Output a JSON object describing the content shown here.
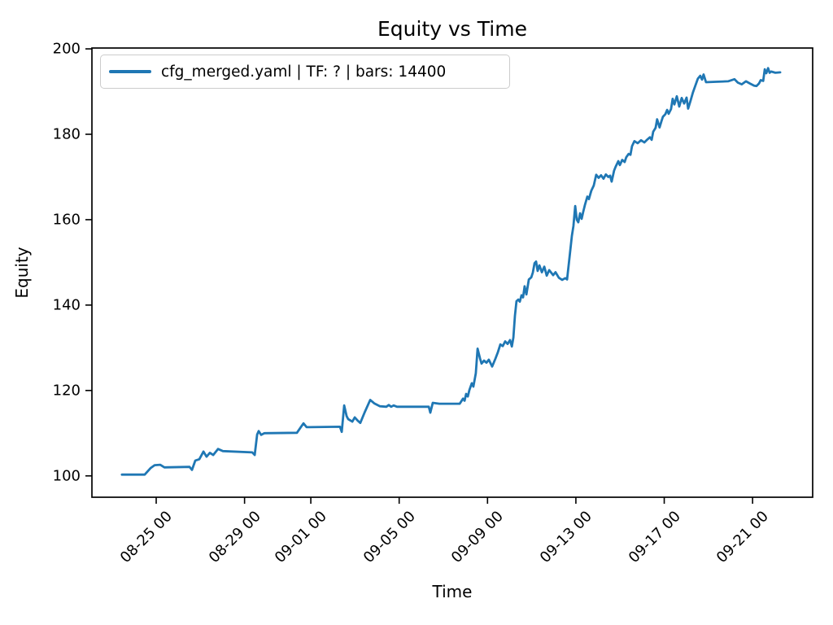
{
  "title": "Equity vs Time",
  "xlabel": "Time",
  "ylabel": "Equity",
  "legend": {
    "label": "cfg_merged.yaml | TF: ? | bars: 14400",
    "swatch_color": "#1f77b4"
  },
  "colors": {
    "line": "#1f77b4",
    "axes": "#000000",
    "legend_border": "#cccccc",
    "background": "#ffffff"
  },
  "chart_data": {
    "type": "line",
    "title": "Equity vs Time",
    "xlabel": "Time",
    "ylabel": "Equity",
    "grid": false,
    "legend_entries": [
      "cfg_merged.yaml | TF: ? | bars: 14400"
    ],
    "legend_position": "upper left",
    "x_unit": "days since 08-23 00:00",
    "xlim": [
      -0.91,
      31.72
    ],
    "ylim": [
      95.0,
      200.2
    ],
    "x_ticks": {
      "values": [
        2,
        6,
        9,
        13,
        17,
        21,
        25,
        29
      ],
      "labels": [
        "08-25 00",
        "08-29 00",
        "09-01 00",
        "09-05 00",
        "09-09 00",
        "09-13 00",
        "09-17 00",
        "09-21 00"
      ]
    },
    "y_ticks": {
      "values": [
        100,
        120,
        140,
        160,
        180,
        200
      ],
      "labels": [
        "100",
        "120",
        "140",
        "160",
        "180",
        "200"
      ]
    },
    "series": [
      {
        "name": "cfg_merged.yaml | TF: ? | bars: 14400",
        "color": "#1f77b4",
        "points": [
          [
            0.45,
            100.3
          ],
          [
            1.48,
            100.3
          ],
          [
            1.74,
            101.8
          ],
          [
            1.93,
            102.5
          ],
          [
            2.18,
            102.6
          ],
          [
            2.37,
            102.0
          ],
          [
            3.51,
            102.1
          ],
          [
            3.62,
            101.4
          ],
          [
            3.77,
            103.6
          ],
          [
            3.95,
            103.9
          ],
          [
            4.14,
            105.7
          ],
          [
            4.28,
            104.5
          ],
          [
            4.43,
            105.4
          ],
          [
            4.58,
            104.9
          ],
          [
            4.8,
            106.3
          ],
          [
            5.02,
            105.8
          ],
          [
            6.35,
            105.5
          ],
          [
            6.46,
            104.9
          ],
          [
            6.57,
            109.7
          ],
          [
            6.64,
            110.5
          ],
          [
            6.75,
            109.6
          ],
          [
            6.9,
            110.0
          ],
          [
            8.37,
            110.1
          ],
          [
            8.56,
            111.5
          ],
          [
            8.67,
            112.3
          ],
          [
            8.81,
            111.4
          ],
          [
            10.32,
            111.5
          ],
          [
            10.4,
            110.3
          ],
          [
            10.51,
            116.5
          ],
          [
            10.62,
            114.0
          ],
          [
            10.69,
            113.3
          ],
          [
            10.88,
            112.7
          ],
          [
            10.99,
            113.7
          ],
          [
            11.13,
            112.9
          ],
          [
            11.24,
            112.4
          ],
          [
            11.43,
            114.8
          ],
          [
            11.69,
            117.8
          ],
          [
            11.87,
            117.0
          ],
          [
            12.13,
            116.3
          ],
          [
            12.42,
            116.2
          ],
          [
            12.53,
            116.6
          ],
          [
            12.64,
            116.2
          ],
          [
            12.75,
            116.5
          ],
          [
            12.9,
            116.2
          ],
          [
            14.34,
            116.2
          ],
          [
            14.41,
            114.8
          ],
          [
            14.52,
            117.1
          ],
          [
            14.82,
            116.9
          ],
          [
            15.74,
            116.9
          ],
          [
            15.89,
            118.1
          ],
          [
            15.96,
            117.6
          ],
          [
            16.03,
            119.2
          ],
          [
            16.11,
            118.6
          ],
          [
            16.18,
            120.1
          ],
          [
            16.29,
            121.7
          ],
          [
            16.36,
            120.9
          ],
          [
            16.47,
            124.0
          ],
          [
            16.55,
            129.8
          ],
          [
            16.66,
            127.5
          ],
          [
            16.73,
            126.3
          ],
          [
            16.84,
            127.0
          ],
          [
            16.95,
            126.5
          ],
          [
            17.06,
            127.2
          ],
          [
            17.21,
            125.6
          ],
          [
            17.36,
            127.5
          ],
          [
            17.47,
            129.0
          ],
          [
            17.58,
            130.8
          ],
          [
            17.69,
            130.4
          ],
          [
            17.8,
            131.5
          ],
          [
            17.91,
            130.9
          ],
          [
            18.02,
            131.8
          ],
          [
            18.1,
            130.3
          ],
          [
            18.17,
            132.4
          ],
          [
            18.24,
            137.5
          ],
          [
            18.31,
            140.9
          ],
          [
            18.39,
            141.3
          ],
          [
            18.46,
            140.8
          ],
          [
            18.54,
            142.3
          ],
          [
            18.61,
            141.8
          ],
          [
            18.68,
            144.4
          ],
          [
            18.76,
            142.5
          ],
          [
            18.87,
            146.0
          ],
          [
            18.98,
            146.5
          ],
          [
            19.05,
            147.6
          ],
          [
            19.13,
            149.8
          ],
          [
            19.2,
            150.2
          ],
          [
            19.27,
            148.0
          ],
          [
            19.35,
            149.3
          ],
          [
            19.46,
            147.7
          ],
          [
            19.57,
            149.0
          ],
          [
            19.68,
            146.9
          ],
          [
            19.79,
            148.2
          ],
          [
            19.97,
            147.0
          ],
          [
            20.08,
            147.7
          ],
          [
            20.23,
            146.4
          ],
          [
            20.38,
            145.9
          ],
          [
            20.52,
            146.3
          ],
          [
            20.6,
            146.0
          ],
          [
            20.71,
            151.0
          ],
          [
            20.82,
            156.2
          ],
          [
            20.89,
            158.5
          ],
          [
            20.97,
            163.2
          ],
          [
            21.04,
            160.0
          ],
          [
            21.11,
            159.4
          ],
          [
            21.19,
            161.5
          ],
          [
            21.26,
            160.2
          ],
          [
            21.33,
            161.8
          ],
          [
            21.41,
            163.5
          ],
          [
            21.52,
            165.4
          ],
          [
            21.59,
            164.8
          ],
          [
            21.7,
            166.8
          ],
          [
            21.81,
            168.0
          ],
          [
            21.92,
            170.5
          ],
          [
            22.03,
            169.8
          ],
          [
            22.14,
            170.4
          ],
          [
            22.25,
            169.6
          ],
          [
            22.36,
            170.6
          ],
          [
            22.47,
            170.0
          ],
          [
            22.55,
            170.3
          ],
          [
            22.62,
            168.9
          ],
          [
            22.73,
            171.5
          ],
          [
            22.8,
            172.4
          ],
          [
            22.92,
            173.7
          ],
          [
            22.99,
            172.8
          ],
          [
            23.1,
            174.0
          ],
          [
            23.21,
            173.5
          ],
          [
            23.28,
            174.6
          ],
          [
            23.39,
            175.4
          ],
          [
            23.47,
            175.2
          ],
          [
            23.54,
            177.2
          ],
          [
            23.65,
            178.4
          ],
          [
            23.8,
            177.9
          ],
          [
            23.95,
            178.6
          ],
          [
            24.1,
            178.1
          ],
          [
            24.24,
            178.8
          ],
          [
            24.35,
            179.3
          ],
          [
            24.43,
            178.7
          ],
          [
            24.5,
            180.6
          ],
          [
            24.61,
            181.5
          ],
          [
            24.68,
            183.5
          ],
          [
            24.79,
            181.6
          ],
          [
            24.87,
            183.0
          ],
          [
            24.94,
            184.1
          ],
          [
            25.05,
            184.7
          ],
          [
            25.13,
            185.7
          ],
          [
            25.2,
            184.8
          ],
          [
            25.31,
            185.9
          ],
          [
            25.38,
            188.3
          ],
          [
            25.46,
            187.0
          ],
          [
            25.57,
            188.9
          ],
          [
            25.68,
            186.5
          ],
          [
            25.79,
            188.5
          ],
          [
            25.9,
            187.2
          ],
          [
            26.01,
            188.6
          ],
          [
            26.08,
            186.0
          ],
          [
            26.19,
            187.8
          ],
          [
            26.3,
            189.8
          ],
          [
            26.41,
            191.4
          ],
          [
            26.52,
            193.0
          ],
          [
            26.63,
            193.7
          ],
          [
            26.71,
            192.8
          ],
          [
            26.78,
            194.0
          ],
          [
            26.89,
            192.2
          ],
          [
            27.33,
            192.3
          ],
          [
            27.89,
            192.4
          ],
          [
            28.18,
            192.9
          ],
          [
            28.33,
            192.1
          ],
          [
            28.51,
            191.7
          ],
          [
            28.7,
            192.4
          ],
          [
            28.88,
            191.9
          ],
          [
            29.07,
            191.4
          ],
          [
            29.18,
            191.3
          ],
          [
            29.29,
            191.9
          ],
          [
            29.37,
            192.7
          ],
          [
            29.48,
            192.5
          ],
          [
            29.55,
            195.2
          ],
          [
            29.62,
            194.3
          ],
          [
            29.7,
            195.5
          ],
          [
            29.77,
            194.4
          ],
          [
            29.84,
            194.7
          ],
          [
            30.03,
            194.4
          ],
          [
            30.25,
            194.5
          ]
        ]
      }
    ]
  }
}
